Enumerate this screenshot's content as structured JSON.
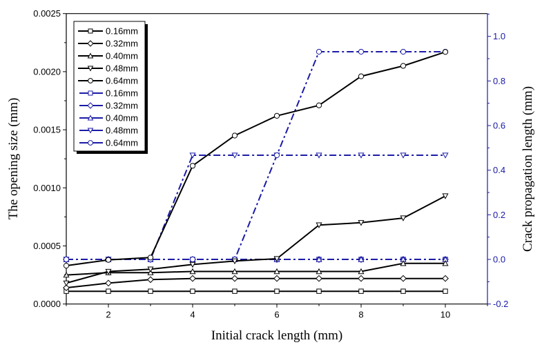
{
  "chart_data": {
    "type": "line",
    "title": "",
    "xlabel": "Initial crack length (mm)",
    "ylabel": "The opening size (mm)",
    "ylabel_right": "Crack propagation length (mm)",
    "x": [
      1,
      2,
      3,
      4,
      5,
      6,
      7,
      8,
      9,
      10
    ],
    "xlim": [
      1,
      11
    ],
    "ylim": [
      0,
      0.0025
    ],
    "ylim_right": [
      -0.2,
      1.1
    ],
    "x_ticks": [
      2,
      4,
      6,
      8,
      10
    ],
    "x_tick_labels": [
      "2",
      "4",
      "6",
      "8",
      "10"
    ],
    "y_ticks": [
      0,
      0.0005,
      0.001,
      0.0015,
      0.002,
      0.0025
    ],
    "y_tick_labels": [
      "0.0000",
      "0.0005",
      "0.0010",
      "0.0015",
      "0.0020",
      "0.0025"
    ],
    "y_right_ticks": [
      -0.2,
      0.0,
      0.2,
      0.4,
      0.6,
      0.8,
      1.0
    ],
    "y_right_tick_labels": [
      "-0.2",
      "0.0",
      "0.2",
      "0.4",
      "0.6",
      "0.8",
      "1.0"
    ],
    "grid": false,
    "legend_position": "upper-left",
    "colors": {
      "left_series": "#000000",
      "right_series": "#1a1aa6",
      "right_axis": "#1a1aa6"
    },
    "series": [
      {
        "name": "0.16mm",
        "axis": "left",
        "style": "solid",
        "marker": "square",
        "values": [
          0.00011,
          0.00011,
          0.00011,
          0.00011,
          0.00011,
          0.00011,
          0.00011,
          0.00011,
          0.00011,
          0.00011
        ]
      },
      {
        "name": "0.32mm",
        "axis": "left",
        "style": "solid",
        "marker": "diamond",
        "values": [
          0.00014,
          0.00018,
          0.00021,
          0.00022,
          0.00022,
          0.00022,
          0.00022,
          0.00022,
          0.00022,
          0.00022
        ]
      },
      {
        "name": "0.40mm",
        "axis": "left",
        "style": "solid",
        "marker": "triangle-up",
        "values": [
          0.00025,
          0.00027,
          0.00027,
          0.00028,
          0.00028,
          0.00028,
          0.00028,
          0.00028,
          0.00035,
          0.00035
        ]
      },
      {
        "name": "0.48mm",
        "axis": "left",
        "style": "solid",
        "marker": "triangle-down",
        "values": [
          0.00018,
          0.00028,
          0.0003,
          0.00034,
          0.00037,
          0.00039,
          0.00068,
          0.0007,
          0.00074,
          0.00093
        ]
      },
      {
        "name": "0.64mm",
        "axis": "left",
        "style": "solid",
        "marker": "circle",
        "values": [
          0.00033,
          0.00038,
          0.0004,
          0.00119,
          0.00145,
          0.00162,
          0.00171,
          0.00196,
          0.00205,
          0.00217
        ]
      },
      {
        "name": "0.16mm",
        "axis": "right",
        "style": "dash-dot",
        "marker": "square",
        "values": [
          0,
          0,
          0,
          0,
          0,
          0,
          0,
          0,
          0,
          0
        ]
      },
      {
        "name": "0.32mm",
        "axis": "right",
        "style": "dash-dot",
        "marker": "diamond",
        "values": [
          0,
          0,
          0,
          0,
          0,
          0,
          0,
          0,
          0,
          0
        ]
      },
      {
        "name": "0.40mm",
        "axis": "right",
        "style": "dash-dot",
        "marker": "triangle-up",
        "values": [
          0,
          0,
          0,
          0,
          0,
          0,
          0,
          0,
          0,
          0
        ]
      },
      {
        "name": "0.48mm",
        "axis": "right",
        "style": "dash-dot",
        "marker": "triangle-down",
        "values": [
          0,
          0,
          0,
          0.467,
          0.467,
          0.467,
          0.467,
          0.467,
          0.467,
          0.467
        ]
      },
      {
        "name": "0.64mm",
        "axis": "right",
        "style": "dash-dot",
        "marker": "circle",
        "values": [
          0,
          0,
          0,
          0,
          0,
          0.467,
          0.931,
          0.931,
          0.931,
          0.931
        ]
      }
    ]
  }
}
